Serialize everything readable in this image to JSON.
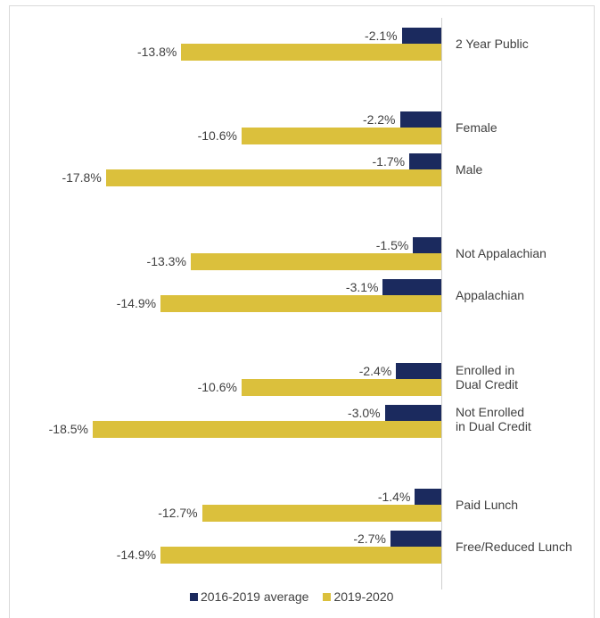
{
  "chart_data": {
    "type": "bar",
    "orientation": "horizontal",
    "categories": [
      "2 Year Public",
      null,
      "Female",
      "Male",
      null,
      "Not Appalachian",
      "Appalachian",
      null,
      "Enrolled in\nDual Credit",
      "Not Enrolled\nin Dual Credit",
      null,
      "Paid Lunch",
      "Free/Reduced Lunch"
    ],
    "series": [
      {
        "name": "2016-2019 average",
        "color": "#1b2a5e",
        "values": [
          -2.1,
          null,
          -2.2,
          -1.7,
          null,
          -1.5,
          -3.1,
          null,
          -2.4,
          -3.0,
          null,
          -1.4,
          -2.7
        ],
        "value_labels": [
          "-2.1%",
          null,
          "-2.2%",
          "-1.7%",
          null,
          "-1.5%",
          "-3.1%",
          null,
          "-2.4%",
          "-3.0%",
          null,
          "-1.4%",
          "-2.7%"
        ]
      },
      {
        "name": "2019-2020",
        "color": "#dbc03c",
        "values": [
          -13.8,
          null,
          -10.6,
          -17.8,
          null,
          -13.3,
          -14.9,
          null,
          -10.6,
          -18.5,
          null,
          -12.7,
          -14.9
        ],
        "value_labels": [
          "-13.8%",
          null,
          "-10.6%",
          "-17.8%",
          null,
          "-13.3%",
          "-14.9%",
          null,
          "-10.6%",
          "-18.5%",
          null,
          "-12.7%",
          "-14.9%"
        ]
      }
    ],
    "legend": "bottom"
  }
}
